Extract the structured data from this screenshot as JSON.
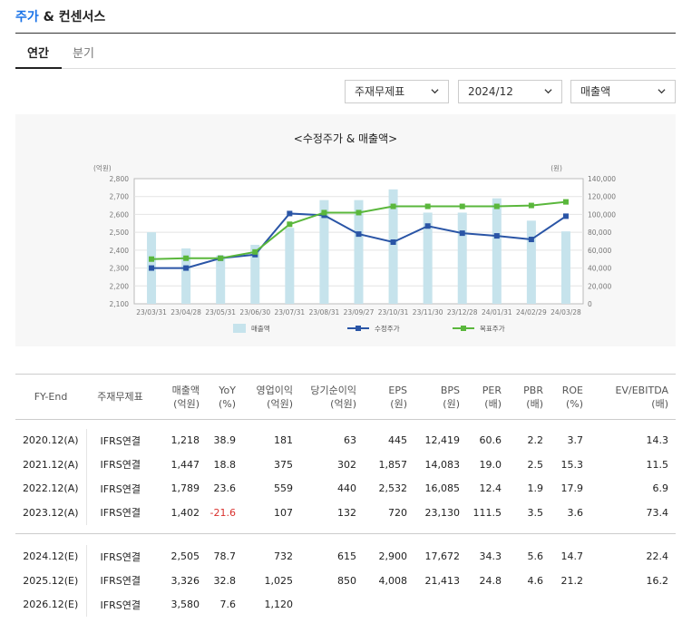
{
  "header": {
    "title_accent": "주가",
    "title_rest": " & 컨센서스"
  },
  "tabs": [
    {
      "label": "연간"
    },
    {
      "label": "분기"
    }
  ],
  "filters": {
    "statement": "주재무제표",
    "period": "2024/12",
    "metric": "매출액"
  },
  "colors": {
    "bar": "#c6e3ec",
    "adj_price": "#2a55a6",
    "target_price": "#5ab73c",
    "negative": "#d9302c",
    "accent": "#1a73e8"
  },
  "chart_data": {
    "type": "bar+line",
    "title": "<수정주가 & 매출액>",
    "left_unit": "(억원)",
    "right_unit": "(원)",
    "categories": [
      "23/03/31",
      "23/04/28",
      "23/05/31",
      "23/06/30",
      "23/07/31",
      "23/08/31",
      "23/09/27",
      "23/10/31",
      "23/11/30",
      "23/12/28",
      "24/01/31",
      "24/02/29",
      "24/03/28"
    ],
    "left_axis": {
      "min": 2100,
      "max": 2800,
      "ticks": [
        "2,100",
        "2,200",
        "2,300",
        "2,400",
        "2,500",
        "2,600",
        "2,700",
        "2,800"
      ]
    },
    "right_axis": {
      "min": 0,
      "max": 140000,
      "ticks": [
        "0",
        "20,000",
        "40,000",
        "60,000",
        "80,000",
        "100,000",
        "120,000",
        "140,000"
      ]
    },
    "series": [
      {
        "name": "매출액",
        "axis": "left",
        "kind": "bar",
        "values": [
          2500,
          2410,
          2370,
          2430,
          2525,
          2680,
          2680,
          2740,
          2610,
          2610,
          2690,
          2565,
          2505
        ]
      },
      {
        "name": "수정주가",
        "axis": "right",
        "kind": "line",
        "values": [
          40000,
          40000,
          51000,
          55000,
          101000,
          99000,
          78000,
          69000,
          87000,
          79000,
          76000,
          72000,
          98000
        ]
      },
      {
        "name": "목표주가",
        "axis": "right",
        "kind": "line",
        "values": [
          50000,
          51000,
          51000,
          58000,
          89000,
          102000,
          102000,
          109000,
          109000,
          109000,
          109000,
          110000,
          114000
        ]
      }
    ],
    "grid": true,
    "legend": "bottom"
  },
  "table": {
    "headers": [
      [
        "FY-End"
      ],
      [
        "주재무제표"
      ],
      [
        "매출액",
        "(억원)"
      ],
      [
        "YoY",
        "(%)"
      ],
      [
        "영업이익",
        "(억원)"
      ],
      [
        "당기순이익",
        "(억원)"
      ],
      [
        "EPS",
        "(원)"
      ],
      [
        "BPS",
        "(원)"
      ],
      [
        "PER",
        "(배)"
      ],
      [
        "PBR",
        "(배)"
      ],
      [
        "ROE",
        "(%)"
      ],
      [
        "EV/EBITDA",
        "(배)"
      ]
    ],
    "actual": [
      [
        "2020.12(A)",
        "IFRS연결",
        "1,218",
        "38.9",
        "181",
        "63",
        "445",
        "12,419",
        "60.6",
        "2.2",
        "3.7",
        "14.3"
      ],
      [
        "2021.12(A)",
        "IFRS연결",
        "1,447",
        "18.8",
        "375",
        "302",
        "1,857",
        "14,083",
        "19.0",
        "2.5",
        "15.3",
        "11.5"
      ],
      [
        "2022.12(A)",
        "IFRS연결",
        "1,789",
        "23.6",
        "559",
        "440",
        "2,532",
        "16,085",
        "12.4",
        "1.9",
        "17.9",
        "6.9"
      ],
      [
        "2023.12(A)",
        "IFRS연결",
        "1,402",
        "-21.6",
        "107",
        "132",
        "720",
        "23,130",
        "111.5",
        "3.5",
        "3.6",
        "73.4"
      ]
    ],
    "estimate": [
      [
        "2024.12(E)",
        "IFRS연결",
        "2,505",
        "78.7",
        "732",
        "615",
        "2,900",
        "17,672",
        "34.3",
        "5.6",
        "14.7",
        "22.4"
      ],
      [
        "2025.12(E)",
        "IFRS연결",
        "3,326",
        "32.8",
        "1,025",
        "850",
        "4,008",
        "21,413",
        "24.8",
        "4.6",
        "21.2",
        "16.2"
      ],
      [
        "2026.12(E)",
        "IFRS연결",
        "3,580",
        "7.6",
        "1,120",
        "",
        "",
        "",
        "",
        "",
        "",
        ""
      ]
    ]
  }
}
